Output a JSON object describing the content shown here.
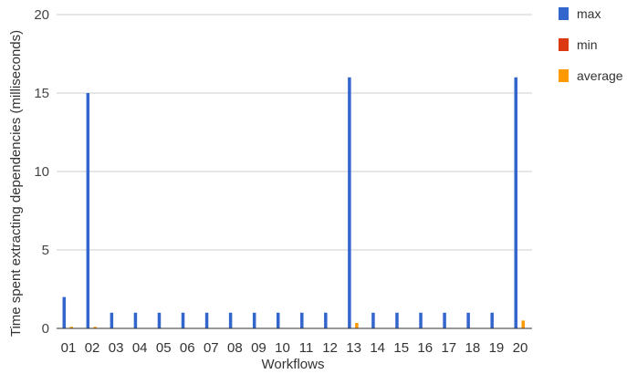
{
  "chart_data": {
    "type": "bar",
    "xlabel": "Workflows",
    "ylabel": "Time spent extracting dependencies (milliseconds)",
    "ylim": [
      0,
      20
    ],
    "yticks": [
      0,
      5,
      10,
      15,
      20
    ],
    "grid": true,
    "legend_position": "top-right",
    "categories": [
      "01",
      "02",
      "03",
      "04",
      "05",
      "06",
      "07",
      "08",
      "09",
      "10",
      "11",
      "12",
      "13",
      "14",
      "15",
      "16",
      "17",
      "18",
      "19",
      "20"
    ],
    "series": [
      {
        "name": "max",
        "color": "#3366cc",
        "values": [
          2,
          15,
          1,
          1,
          1,
          1,
          1,
          1,
          1,
          1,
          1,
          1,
          16,
          1,
          1,
          1,
          1,
          1,
          1,
          16
        ]
      },
      {
        "name": "min",
        "color": "#dc3912",
        "values": [
          0,
          0,
          0,
          0,
          0,
          0,
          0,
          0,
          0,
          0,
          0,
          0,
          0,
          0,
          0,
          0,
          0,
          0,
          0,
          0
        ]
      },
      {
        "name": "average",
        "color": "#ff9900",
        "values": [
          0.1,
          0.1,
          0,
          0,
          0,
          0,
          0,
          0,
          0,
          0,
          0,
          0,
          0.35,
          0,
          0,
          0,
          0,
          0,
          0,
          0.5
        ]
      }
    ]
  }
}
